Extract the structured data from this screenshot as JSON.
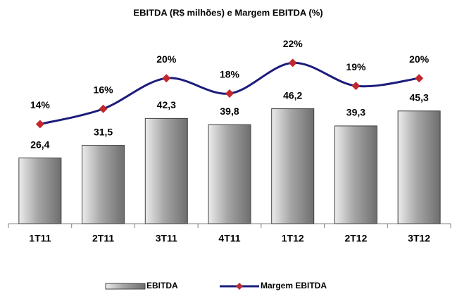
{
  "chart_data": {
    "type": "bar",
    "title": "EBITDA (R$ milhões) e Margem EBITDA (%)",
    "categories": [
      "1T11",
      "2T11",
      "3T11",
      "4T11",
      "1T12",
      "2T12",
      "3T12"
    ],
    "series": [
      {
        "name": "EBITDA",
        "type": "bar",
        "color": "#a6a6a6",
        "values": [
          26.4,
          31.5,
          42.3,
          39.8,
          46.2,
          39.3,
          45.3
        ],
        "value_labels": [
          "26,4",
          "31,5",
          "42,3",
          "39,8",
          "46,2",
          "39,3",
          "45,3"
        ]
      },
      {
        "name": "Margem EBITDA",
        "type": "line",
        "axis": "y2",
        "color": "#1c1c7c",
        "marker_color": "#c0282d",
        "values": [
          14,
          16,
          20,
          18,
          22,
          19,
          20
        ],
        "value_labels": [
          "14%",
          "16%",
          "20%",
          "18%",
          "22%",
          "19%",
          "20%"
        ]
      }
    ],
    "ylim": [
      0,
      80
    ],
    "y2lim": [
      1,
      27
    ],
    "legend": "bottom"
  }
}
